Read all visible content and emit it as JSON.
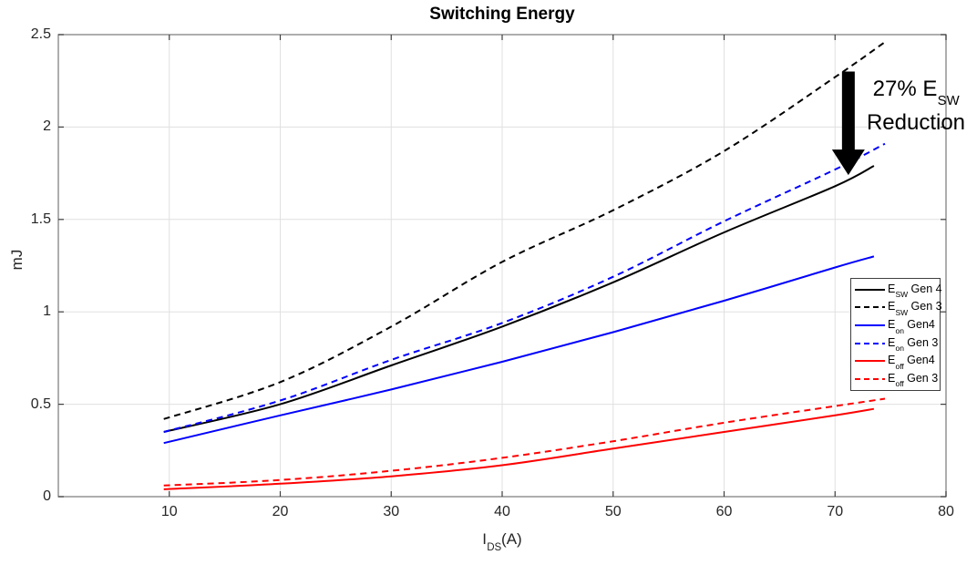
{
  "chart_data": {
    "type": "line",
    "title": "Switching Energy",
    "ylabel": "mJ",
    "xlabel": {
      "pre": "I",
      "sub": "DS",
      "rest": "(A)"
    },
    "xlim": [
      0,
      80
    ],
    "ylim": [
      0,
      2.5
    ],
    "x_ticks": [
      10,
      20,
      30,
      40,
      50,
      60,
      70,
      80
    ],
    "y_ticks": [
      0,
      0.5,
      1,
      1.5,
      2,
      2.5
    ],
    "grid": true,
    "legend_position": "right-center",
    "series": [
      {
        "name": "E_SW Gen 4",
        "label": {
          "pre": "E",
          "sub": "SW",
          "rest": " Gen 4"
        },
        "color": "#000000",
        "dash": false,
        "x": [
          9.5,
          20,
          30,
          40,
          50,
          60,
          70,
          73.5
        ],
        "values": [
          0.35,
          0.5,
          0.71,
          0.92,
          1.16,
          1.43,
          1.68,
          1.79
        ]
      },
      {
        "name": "E_SW Gen 3",
        "label": {
          "pre": "E",
          "sub": "SW",
          "rest": " Gen 3"
        },
        "color": "#000000",
        "dash": true,
        "x": [
          9.5,
          20,
          30,
          40,
          50,
          60,
          70,
          74.5
        ],
        "values": [
          0.42,
          0.62,
          0.92,
          1.27,
          1.55,
          1.87,
          2.27,
          2.46
        ]
      },
      {
        "name": "E_on Gen4",
        "label": {
          "pre": "E",
          "sub": "on",
          "rest": " Gen4"
        },
        "color": "#0000ff",
        "dash": false,
        "x": [
          9.5,
          20,
          30,
          40,
          50,
          60,
          70,
          73.5
        ],
        "values": [
          0.29,
          0.44,
          0.58,
          0.73,
          0.89,
          1.06,
          1.24,
          1.3
        ]
      },
      {
        "name": "E_on Gen 3",
        "label": {
          "pre": "E",
          "sub": "on",
          "rest": " Gen 3"
        },
        "color": "#0000ff",
        "dash": true,
        "x": [
          9.5,
          20,
          30,
          40,
          50,
          60,
          70,
          74.5
        ],
        "values": [
          0.35,
          0.52,
          0.74,
          0.94,
          1.19,
          1.49,
          1.77,
          1.91
        ]
      },
      {
        "name": "E_off Gen4",
        "label": {
          "pre": "E",
          "sub": "off",
          "rest": " Gen4"
        },
        "color": "#ff0000",
        "dash": false,
        "x": [
          9.5,
          20,
          30,
          40,
          50,
          60,
          70,
          73.5
        ],
        "values": [
          0.04,
          0.07,
          0.11,
          0.17,
          0.26,
          0.35,
          0.44,
          0.475
        ]
      },
      {
        "name": "E_off Gen 3",
        "label": {
          "pre": "E",
          "sub": "off",
          "rest": " Gen 3"
        },
        "color": "#ff0000",
        "dash": true,
        "x": [
          9.5,
          20,
          30,
          40,
          50,
          60,
          70,
          74.5
        ],
        "values": [
          0.06,
          0.09,
          0.14,
          0.21,
          0.3,
          0.4,
          0.49,
          0.53
        ]
      }
    ],
    "annotation": {
      "text_line1_pre": "27% E",
      "text_line1_sub": "SW",
      "text_line2": "Reduction",
      "arrow_x": 71.2,
      "arrow_top": 2.3,
      "arrow_bottom": 1.74,
      "arrow_color": "#000000"
    }
  }
}
